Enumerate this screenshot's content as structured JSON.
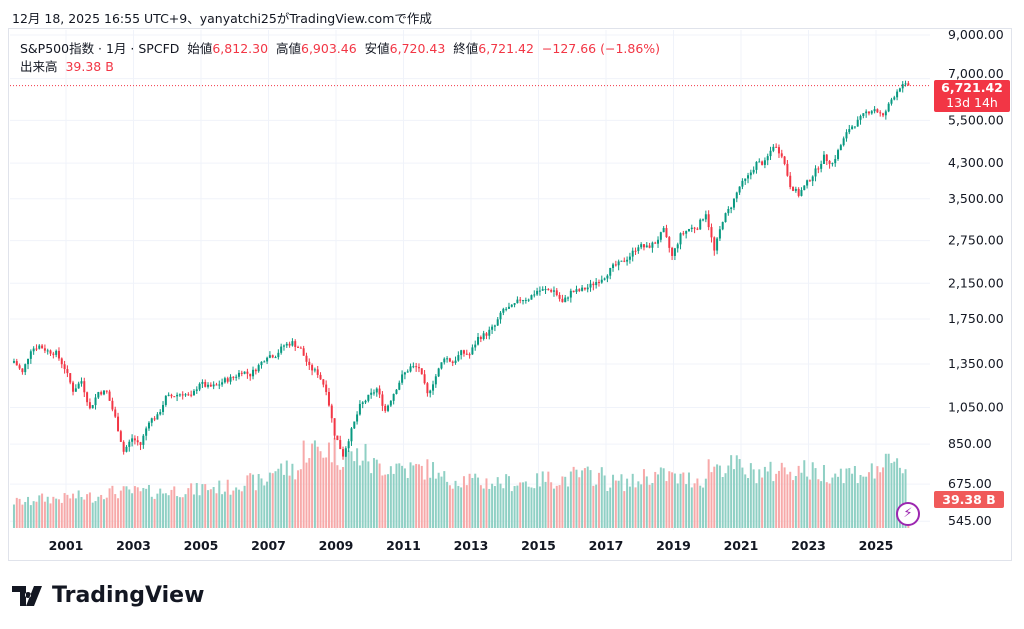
{
  "caption": "12月 18, 2025 16:55 UTC+9、yanyatchi25がTradingView.comで作成",
  "legend": {
    "symbol": "S&P500指数 · 1月 · SPCFD",
    "open_label": "始値",
    "open": "6,812.30",
    "high_label": "高値",
    "high": "6,903.46",
    "low_label": "安値",
    "low": "6,720.43",
    "close_label": "終値",
    "close": "6,721.42",
    "change": "−127.66 (−1.86%)",
    "volume_label": "出来高",
    "volume": "39.38 B"
  },
  "price_label": {
    "price": "6,721.42",
    "countdown": "13d 14h"
  },
  "volume_label": "39.38 B",
  "logo": "TradingView",
  "colors": {
    "up": "#089981",
    "down": "#f23645",
    "up_vol": "#8fd0c4",
    "down_vol": "#f7a9a9"
  },
  "chart_data": {
    "type": "candlestick",
    "title": "S&P500指数 · 1月 · SPCFD",
    "scale": "log",
    "ylim": [
      545,
      9000
    ],
    "y_ticks": [
      "9,000.00",
      "7,000.00",
      "5,500.00",
      "4,300.00",
      "3,500.00",
      "2,750.00",
      "2,150.00",
      "1,750.00",
      "1,350.00",
      "1,050.00",
      "850.00",
      "675.00",
      "545.00"
    ],
    "y_tick_values": [
      9000,
      7000,
      5500,
      4300,
      3500,
      2750,
      2150,
      1750,
      1350,
      1050,
      850,
      675,
      545
    ],
    "x_ticks": [
      "2001",
      "2003",
      "2005",
      "2007",
      "2009",
      "2011",
      "2013",
      "2015",
      "2017",
      "2019",
      "2021",
      "2023",
      "2025"
    ],
    "start": "1999-06",
    "quarterly_closes": [
      1373,
      1282,
      1469,
      1499,
      1455,
      1436,
      1320,
      1160,
      1224,
      1041,
      1148,
      1147,
      990,
      815,
      880,
      848,
      975,
      996,
      1112,
      1126,
      1141,
      1114,
      1212,
      1181,
      1191,
      1229,
      1248,
      1295,
      1270,
      1336,
      1418,
      1421,
      1503,
      1527,
      1468,
      1323,
      1280,
      1166,
      903,
      798,
      919,
      1057,
      1115,
      1169,
      1031,
      1141,
      1258,
      1326,
      1321,
      1131,
      1258,
      1408,
      1362,
      1441,
      1426,
      1569,
      1606,
      1682,
      1848,
      1872,
      1960,
      1972,
      2059,
      2068,
      2063,
      1920,
      2044,
      2060,
      2099,
      2168,
      2239,
      2363,
      2423,
      2519,
      2674,
      2641,
      2718,
      2914,
      2507,
      2834,
      2942,
      2977,
      3231,
      2585,
      3100,
      3363,
      3756,
      3973,
      4298,
      4308,
      4766,
      4530,
      3785,
      3586,
      3840,
      4109,
      4450,
      4288,
      4770,
      5254,
      5460,
      5762,
      5882,
      5612,
      6205,
      6688,
      6721.42
    ],
    "yearly_avg_volume_B": {
      "1999": 40,
      "2000": 45,
      "2001": 48,
      "2002": 55,
      "2003": 55,
      "2004": 58,
      "2005": 62,
      "2006": 70,
      "2007": 90,
      "2008": 120,
      "2009": 110,
      "2010": 95,
      "2011": 90,
      "2012": 75,
      "2013": 70,
      "2014": 70,
      "2015": 75,
      "2016": 80,
      "2017": 70,
      "2018": 80,
      "2019": 75,
      "2020": 95,
      "2021": 85,
      "2022": 90,
      "2023": 85,
      "2024": 85,
      "2025": 95
    },
    "last_close": 6721.42,
    "last_open": 6812.3,
    "last_high": 6903.46,
    "last_low": 6720.43,
    "last_volume_B": 39.38
  }
}
